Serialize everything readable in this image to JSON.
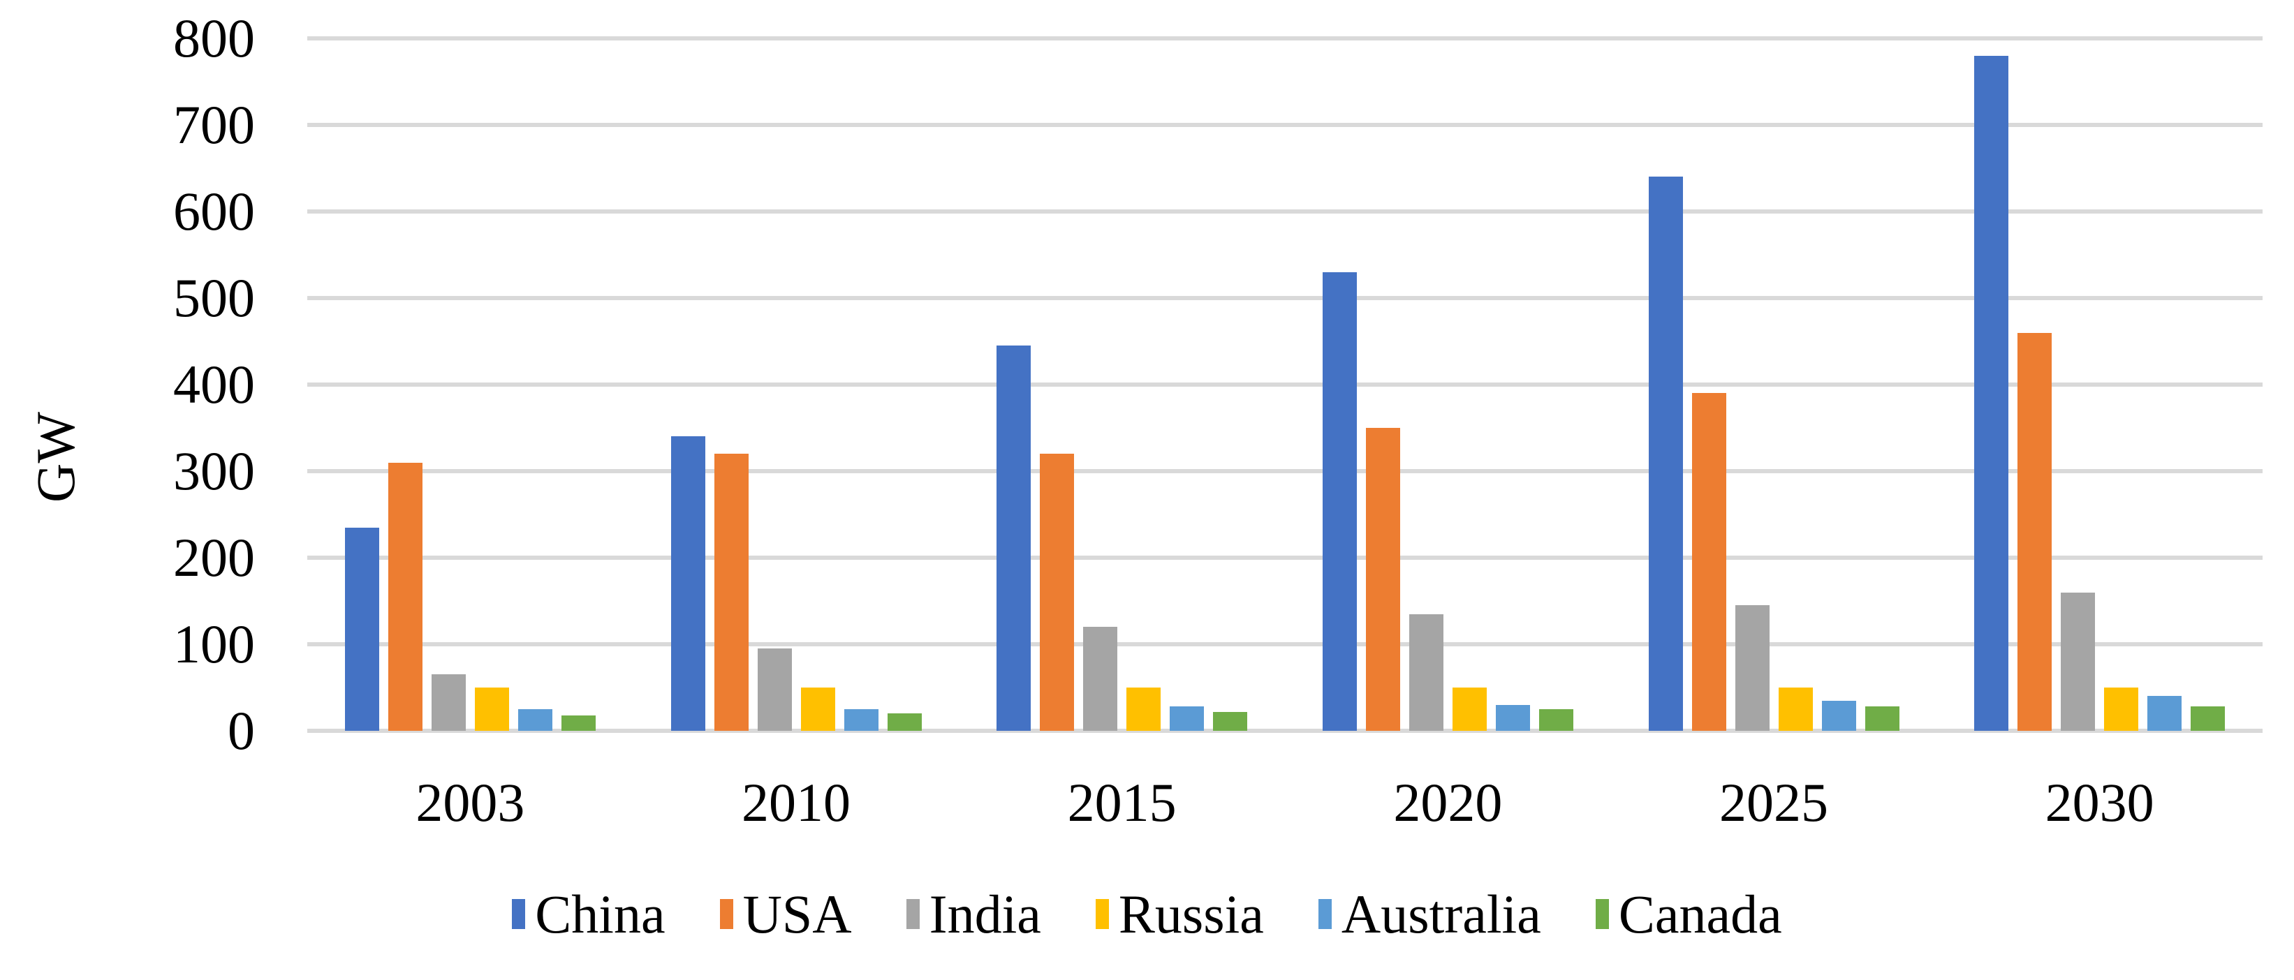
{
  "chart_data": {
    "type": "bar",
    "title": "",
    "xlabel": "",
    "ylabel": "GW",
    "categories": [
      "2003",
      "2010",
      "2015",
      "2020",
      "2025",
      "2030"
    ],
    "series": [
      {
        "name": "China",
        "color": "#4472C4",
        "values": [
          235,
          340,
          445,
          530,
          640,
          780
        ]
      },
      {
        "name": "USA",
        "color": "#ED7D31",
        "values": [
          310,
          320,
          320,
          350,
          390,
          460
        ]
      },
      {
        "name": "India",
        "color": "#A5A5A5",
        "values": [
          65,
          95,
          120,
          135,
          145,
          160
        ]
      },
      {
        "name": "Russia",
        "color": "#FFC000",
        "values": [
          50,
          50,
          50,
          50,
          50,
          50
        ]
      },
      {
        "name": "Australia",
        "color": "#5B9BD5",
        "values": [
          25,
          25,
          28,
          30,
          35,
          40
        ]
      },
      {
        "name": "Canada",
        "color": "#70AD47",
        "values": [
          18,
          20,
          22,
          25,
          28,
          28
        ]
      }
    ],
    "y_axis": {
      "min": 0,
      "max": 800,
      "step": 100,
      "tick_labels": [
        "0",
        "100",
        "200",
        "300",
        "400",
        "500",
        "600",
        "700",
        "800"
      ]
    },
    "grid": true,
    "gridline_color": "#D9D9D9",
    "legend_position": "bottom",
    "text_color": "#000000",
    "background_color": "#FFFFFF"
  }
}
